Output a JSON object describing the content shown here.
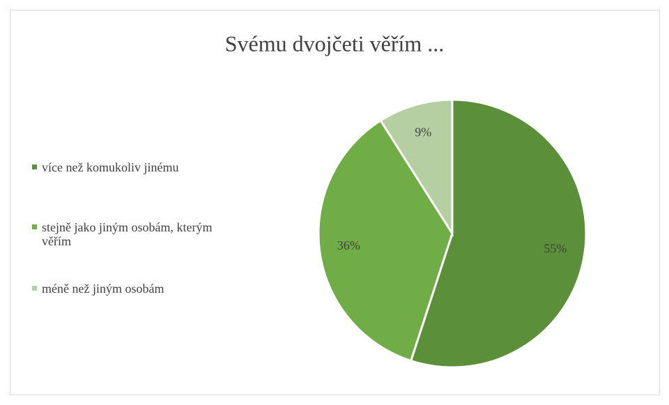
{
  "chart_data": {
    "type": "pie",
    "title": "Svému dvojčeti věřím ...",
    "categories": [
      "více než komukoliv jinému",
      "stejně jako jiným osobám, kterým věřím",
      "méně než jiným osobám"
    ],
    "values": [
      55,
      36,
      9
    ],
    "value_labels": [
      "55%",
      "36%",
      "9%"
    ],
    "colors": [
      "#5b8f3a",
      "#70ad47",
      "#b5cfa3"
    ],
    "legend": "left"
  }
}
